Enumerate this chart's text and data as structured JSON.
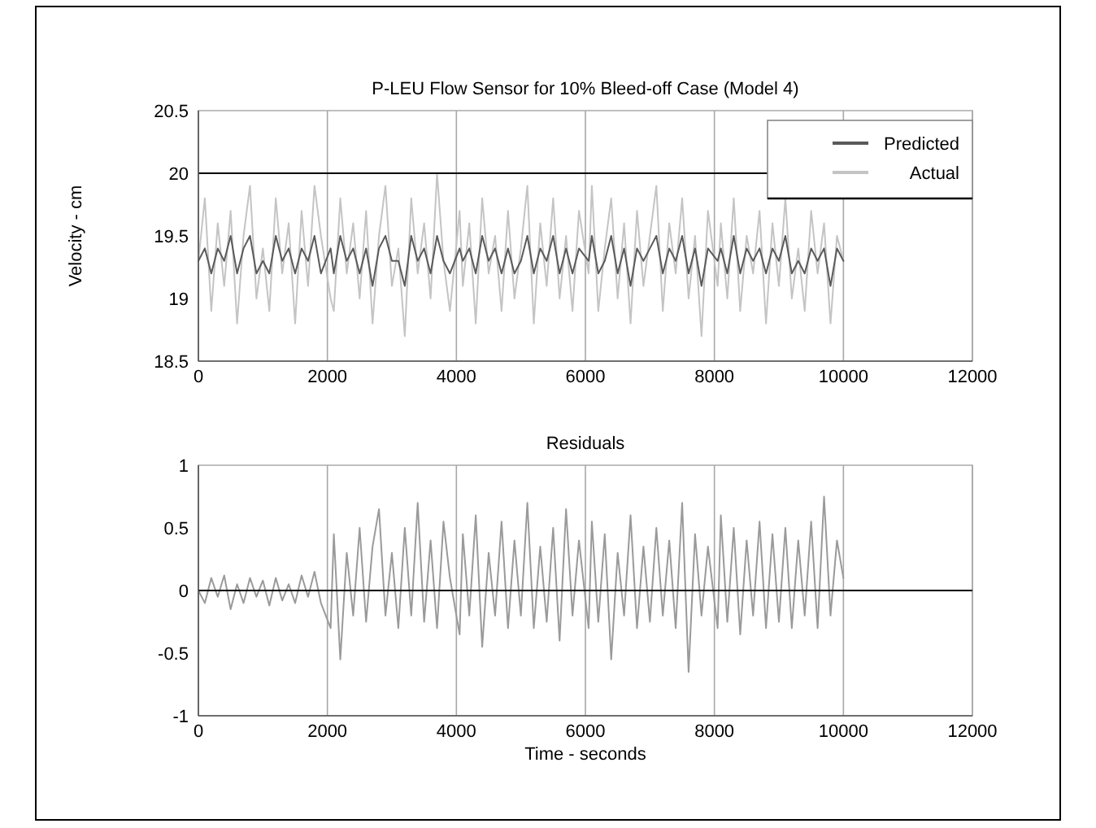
{
  "chart_data": [
    {
      "type": "line",
      "title": "P-LEU Flow Sensor for 10% Bleed-off Case (Model 4)",
      "ylabel": "Velocity - cm",
      "x": [
        0,
        100,
        200,
        300,
        400,
        500,
        600,
        700,
        800,
        900,
        1000,
        1100,
        1200,
        1300,
        1400,
        1500,
        1600,
        1700,
        1800,
        1900,
        2050,
        2100,
        2200,
        2300,
        2400,
        2500,
        2600,
        2700,
        2800,
        2900,
        3000,
        3100,
        3200,
        3300,
        3400,
        3500,
        3600,
        3700,
        3800,
        3900,
        4050,
        4100,
        4200,
        4300,
        4400,
        4500,
        4600,
        4700,
        4800,
        4900,
        5000,
        5100,
        5200,
        5300,
        5400,
        5500,
        5600,
        5700,
        5800,
        5900,
        6050,
        6100,
        6200,
        6300,
        6400,
        6500,
        6600,
        6700,
        6800,
        6900,
        7000,
        7100,
        7200,
        7300,
        7400,
        7500,
        7600,
        7700,
        7800,
        7900,
        8050,
        8100,
        8200,
        8300,
        8400,
        8500,
        8600,
        8700,
        8800,
        8900,
        9000,
        9100,
        9200,
        9300,
        9400,
        9500,
        9600,
        9700,
        9800,
        9900,
        10000
      ],
      "series": [
        {
          "name": "Predicted",
          "color": "#5a5a5a",
          "values": [
            19.3,
            19.4,
            19.2,
            19.4,
            19.3,
            19.5,
            19.2,
            19.4,
            19.5,
            19.2,
            19.3,
            19.2,
            19.5,
            19.3,
            19.4,
            19.2,
            19.4,
            19.3,
            19.5,
            19.2,
            19.4,
            19.2,
            19.5,
            19.3,
            19.4,
            19.2,
            19.4,
            19.1,
            19.4,
            19.5,
            19.3,
            19.3,
            19.1,
            19.5,
            19.3,
            19.4,
            19.2,
            19.5,
            19.3,
            19.2,
            19.4,
            19.3,
            19.4,
            19.2,
            19.5,
            19.3,
            19.4,
            19.2,
            19.4,
            19.2,
            19.3,
            19.5,
            19.2,
            19.4,
            19.3,
            19.5,
            19.2,
            19.4,
            19.2,
            19.4,
            19.3,
            19.5,
            19.2,
            19.3,
            19.5,
            19.2,
            19.4,
            19.1,
            19.4,
            19.3,
            19.4,
            19.5,
            19.2,
            19.4,
            19.3,
            19.5,
            19.2,
            19.4,
            19.1,
            19.4,
            19.3,
            19.4,
            19.2,
            19.5,
            19.2,
            19.4,
            19.3,
            19.4,
            19.2,
            19.4,
            19.3,
            19.5,
            19.2,
            19.3,
            19.2,
            19.4,
            19.3,
            19.4,
            19.1,
            19.4,
            19.3
          ]
        },
        {
          "name": "Actual",
          "color": "#c4c4c4",
          "values": [
            19.3,
            19.8,
            18.9,
            19.6,
            19.1,
            19.7,
            18.8,
            19.5,
            19.9,
            19.0,
            19.4,
            18.9,
            19.8,
            19.2,
            19.6,
            18.8,
            19.7,
            19.1,
            19.9,
            19.5,
            19.0,
            18.9,
            19.8,
            19.2,
            19.6,
            19.0,
            19.7,
            18.8,
            19.5,
            19.9,
            19.1,
            19.4,
            18.7,
            19.8,
            19.2,
            19.6,
            19.0,
            20.0,
            19.3,
            18.9,
            19.7,
            19.1,
            19.6,
            18.8,
            19.8,
            19.2,
            19.5,
            18.9,
            19.7,
            19.0,
            19.4,
            19.9,
            18.8,
            19.6,
            19.1,
            19.8,
            19.0,
            19.5,
            18.9,
            19.7,
            19.2,
            19.9,
            18.9,
            19.4,
            19.8,
            19.0,
            19.6,
            18.8,
            19.7,
            19.1,
            19.5,
            19.9,
            18.9,
            19.6,
            19.2,
            19.8,
            19.0,
            19.5,
            18.7,
            19.7,
            19.1,
            19.6,
            19.0,
            19.8,
            18.9,
            19.5,
            19.2,
            19.7,
            18.8,
            19.6,
            19.1,
            19.8,
            19.0,
            19.4,
            18.9,
            19.7,
            19.2,
            19.6,
            18.8,
            19.5,
            19.3
          ]
        }
      ],
      "xlim": [
        0,
        12000
      ],
      "xticks": [
        0,
        2000,
        4000,
        6000,
        8000,
        10000,
        12000
      ],
      "ylim": [
        18.5,
        20.5
      ],
      "yticks": [
        18.5,
        19,
        19.5,
        20,
        20.5
      ],
      "ref_lines": [
        {
          "axis": "y",
          "value": 20,
          "color": "#000000"
        }
      ],
      "grid": "x",
      "legend": "top right"
    },
    {
      "type": "line",
      "title": "Residuals",
      "xlabel": "Time - seconds",
      "x": [
        0,
        100,
        200,
        300,
        400,
        500,
        600,
        700,
        800,
        900,
        1000,
        1100,
        1200,
        1300,
        1400,
        1500,
        1600,
        1700,
        1800,
        1900,
        2050,
        2100,
        2200,
        2300,
        2400,
        2500,
        2600,
        2700,
        2800,
        2900,
        3000,
        3100,
        3200,
        3300,
        3400,
        3500,
        3600,
        3700,
        3800,
        3900,
        4050,
        4100,
        4200,
        4300,
        4400,
        4500,
        4600,
        4700,
        4800,
        4900,
        5000,
        5100,
        5200,
        5300,
        5400,
        5500,
        5600,
        5700,
        5800,
        5900,
        6050,
        6100,
        6200,
        6300,
        6400,
        6500,
        6600,
        6700,
        6800,
        6900,
        7000,
        7100,
        7200,
        7300,
        7400,
        7500,
        7600,
        7700,
        7800,
        7900,
        8050,
        8100,
        8200,
        8300,
        8400,
        8500,
        8600,
        8700,
        8800,
        8900,
        9000,
        9100,
        9200,
        9300,
        9400,
        9500,
        9600,
        9700,
        9800,
        9900,
        10000
      ],
      "series": [
        {
          "color": "#9a9a9a",
          "values": [
            0,
            -0.1,
            0.1,
            -0.05,
            0.12,
            -0.15,
            0.05,
            -0.1,
            0.1,
            -0.05,
            0.08,
            -0.12,
            0.1,
            -0.08,
            0.05,
            -0.1,
            0.12,
            -0.05,
            0.15,
            -0.1,
            -0.3,
            0.45,
            -0.55,
            0.3,
            -0.2,
            0.5,
            -0.25,
            0.35,
            0.65,
            -0.2,
            0.3,
            -0.3,
            0.5,
            -0.2,
            0.7,
            -0.25,
            0.4,
            -0.3,
            0.55,
            0.1,
            -0.35,
            0.45,
            -0.2,
            0.6,
            -0.45,
            0.3,
            -0.2,
            0.55,
            -0.3,
            0.4,
            -0.2,
            0.7,
            -0.3,
            0.35,
            -0.25,
            0.5,
            -0.4,
            0.65,
            -0.2,
            0.4,
            -0.3,
            0.55,
            -0.25,
            0.45,
            -0.55,
            0.3,
            -0.2,
            0.6,
            -0.3,
            0.35,
            -0.25,
            0.5,
            -0.2,
            0.4,
            -0.3,
            0.7,
            -0.65,
            0.45,
            -0.2,
            0.35,
            -0.3,
            0.6,
            -0.25,
            0.5,
            -0.35,
            0.4,
            -0.2,
            0.55,
            -0.3,
            0.45,
            -0.25,
            0.5,
            -0.3,
            0.4,
            -0.2,
            0.55,
            -0.3,
            0.75,
            -0.2,
            0.4,
            0.1
          ]
        }
      ],
      "xlim": [
        0,
        12000
      ],
      "xticks": [
        0,
        2000,
        4000,
        6000,
        8000,
        10000,
        12000
      ],
      "ylim": [
        -1,
        1
      ],
      "yticks": [
        -1,
        -0.5,
        0,
        0.5,
        1
      ],
      "ref_lines": [
        {
          "axis": "y",
          "value": 0,
          "color": "#000000"
        }
      ],
      "grid": "x"
    }
  ]
}
